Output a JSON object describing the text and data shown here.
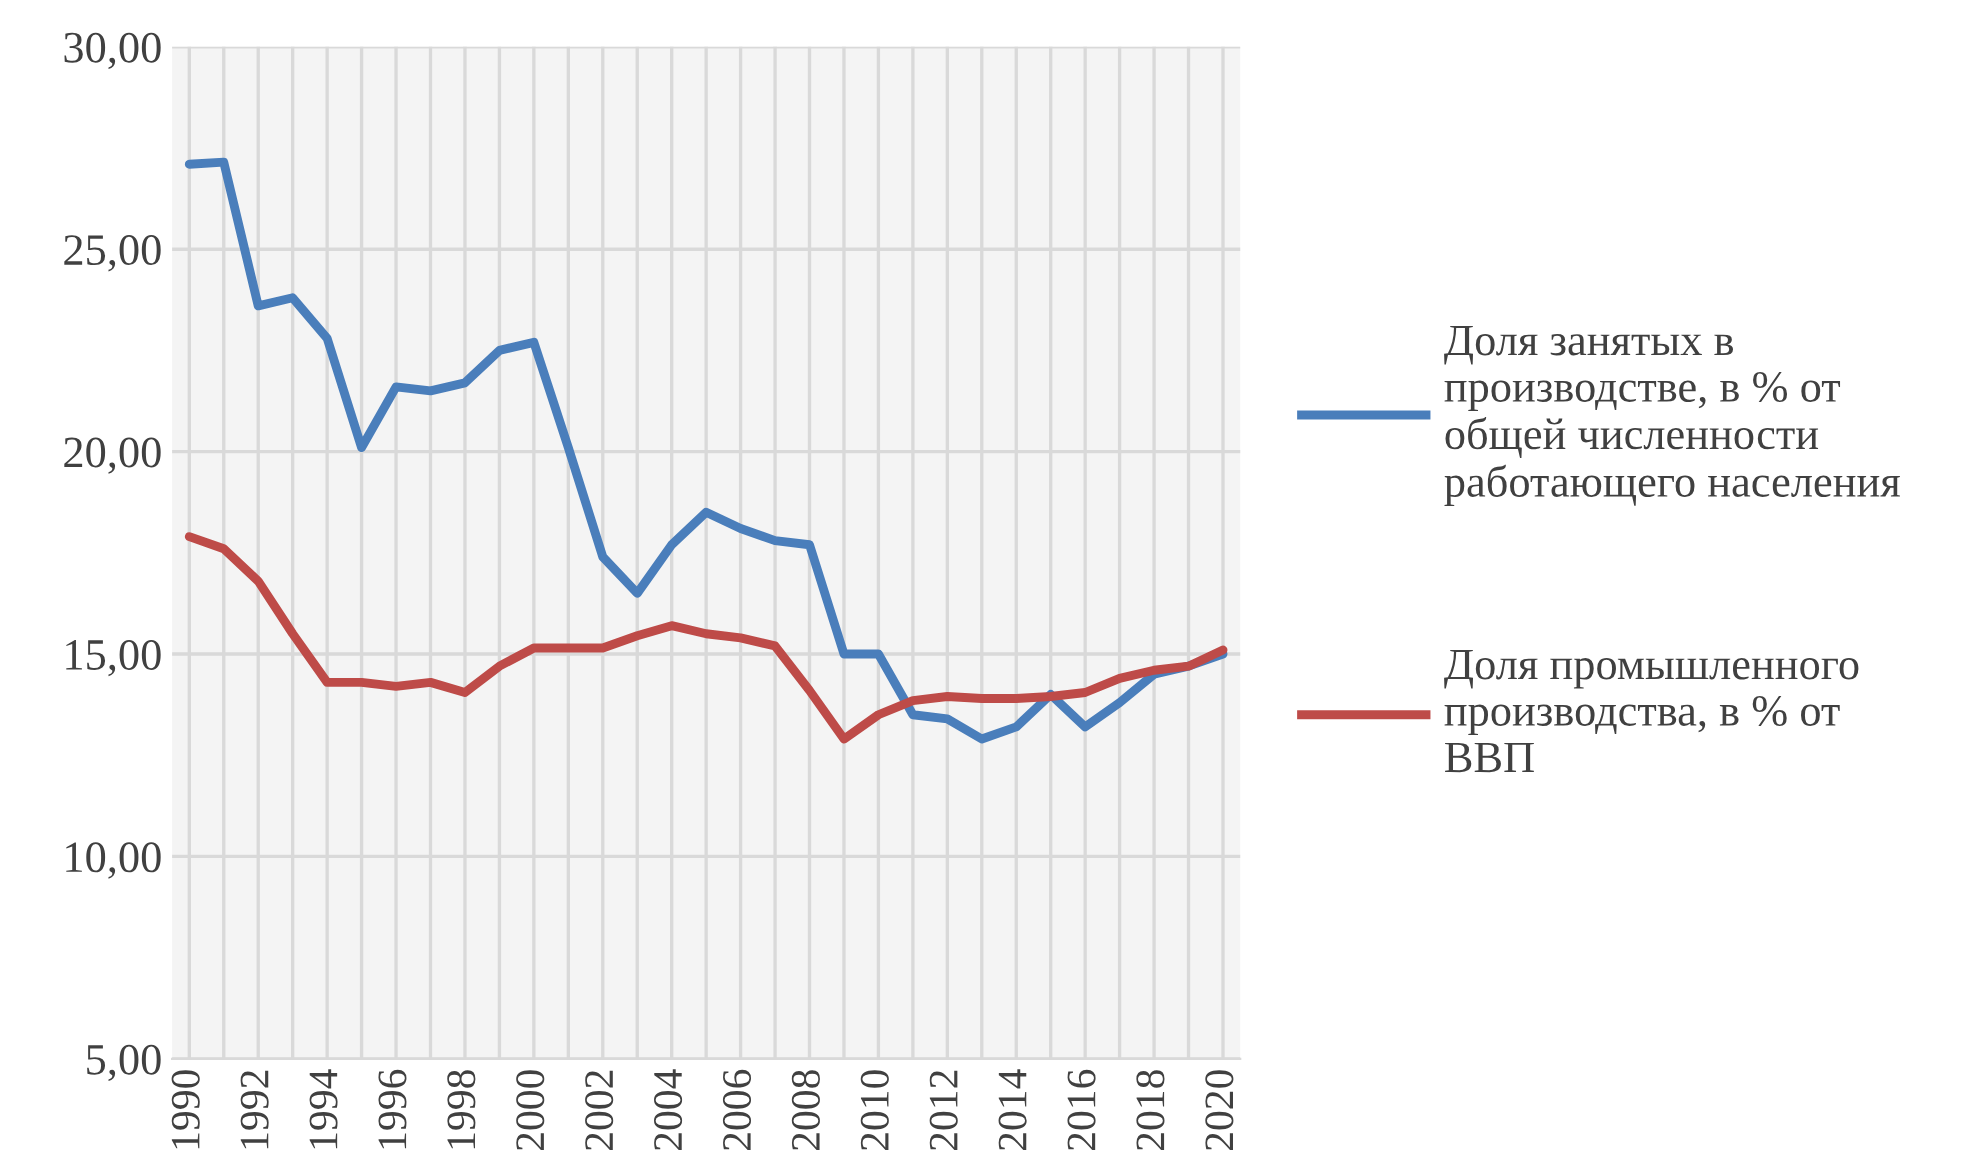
{
  "chart_data": {
    "type": "line",
    "categories": [
      "1990",
      null,
      "1992",
      null,
      "1994",
      null,
      "1996",
      null,
      "1998",
      null,
      "2000",
      null,
      "2002",
      null,
      "2004",
      null,
      "2006",
      null,
      "2008",
      null,
      "2010",
      null,
      "2012",
      null,
      "2014",
      null,
      "2016",
      null,
      "2018",
      null,
      "2020"
    ],
    "series": [
      {
        "name": "Доля занятых в производстве, в % от общей численности работающего населения",
        "color": "#4a7ebb",
        "values": [
          27.1,
          27.15,
          23.6,
          23.8,
          22.8,
          20.1,
          21.6,
          21.5,
          21.7,
          22.5,
          22.7,
          20.1,
          17.4,
          16.5,
          17.7,
          18.5,
          18.1,
          17.8,
          17.7,
          15.0,
          15.0,
          13.5,
          13.4,
          12.9,
          13.2,
          14.0,
          13.2,
          13.8,
          14.5,
          14.7,
          15.0
        ]
      },
      {
        "name": "Доля промышленного производства, в % от ВВП",
        "color": "#be4b48",
        "values": [
          17.9,
          17.6,
          16.8,
          15.5,
          14.3,
          14.3,
          14.2,
          14.3,
          14.05,
          14.7,
          15.15,
          15.15,
          15.15,
          15.45,
          15.7,
          15.5,
          15.4,
          15.2,
          14.1,
          12.9,
          13.5,
          13.85,
          13.95,
          13.9,
          13.9,
          13.95,
          14.05,
          14.4,
          14.6,
          14.7,
          15.1
        ]
      }
    ],
    "ylim": [
      5,
      30
    ],
    "yticks": [
      {
        "value": 5,
        "label": "5,00"
      },
      {
        "value": 10,
        "label": "10,00"
      },
      {
        "value": 15,
        "label": "15,00"
      },
      {
        "value": 20,
        "label": "20,00"
      },
      {
        "value": 25,
        "label": "25,00"
      },
      {
        "value": 30,
        "label": "30,00"
      }
    ],
    "grid": true,
    "legend": "right",
    "marker": "none",
    "line_style": "solid"
  }
}
